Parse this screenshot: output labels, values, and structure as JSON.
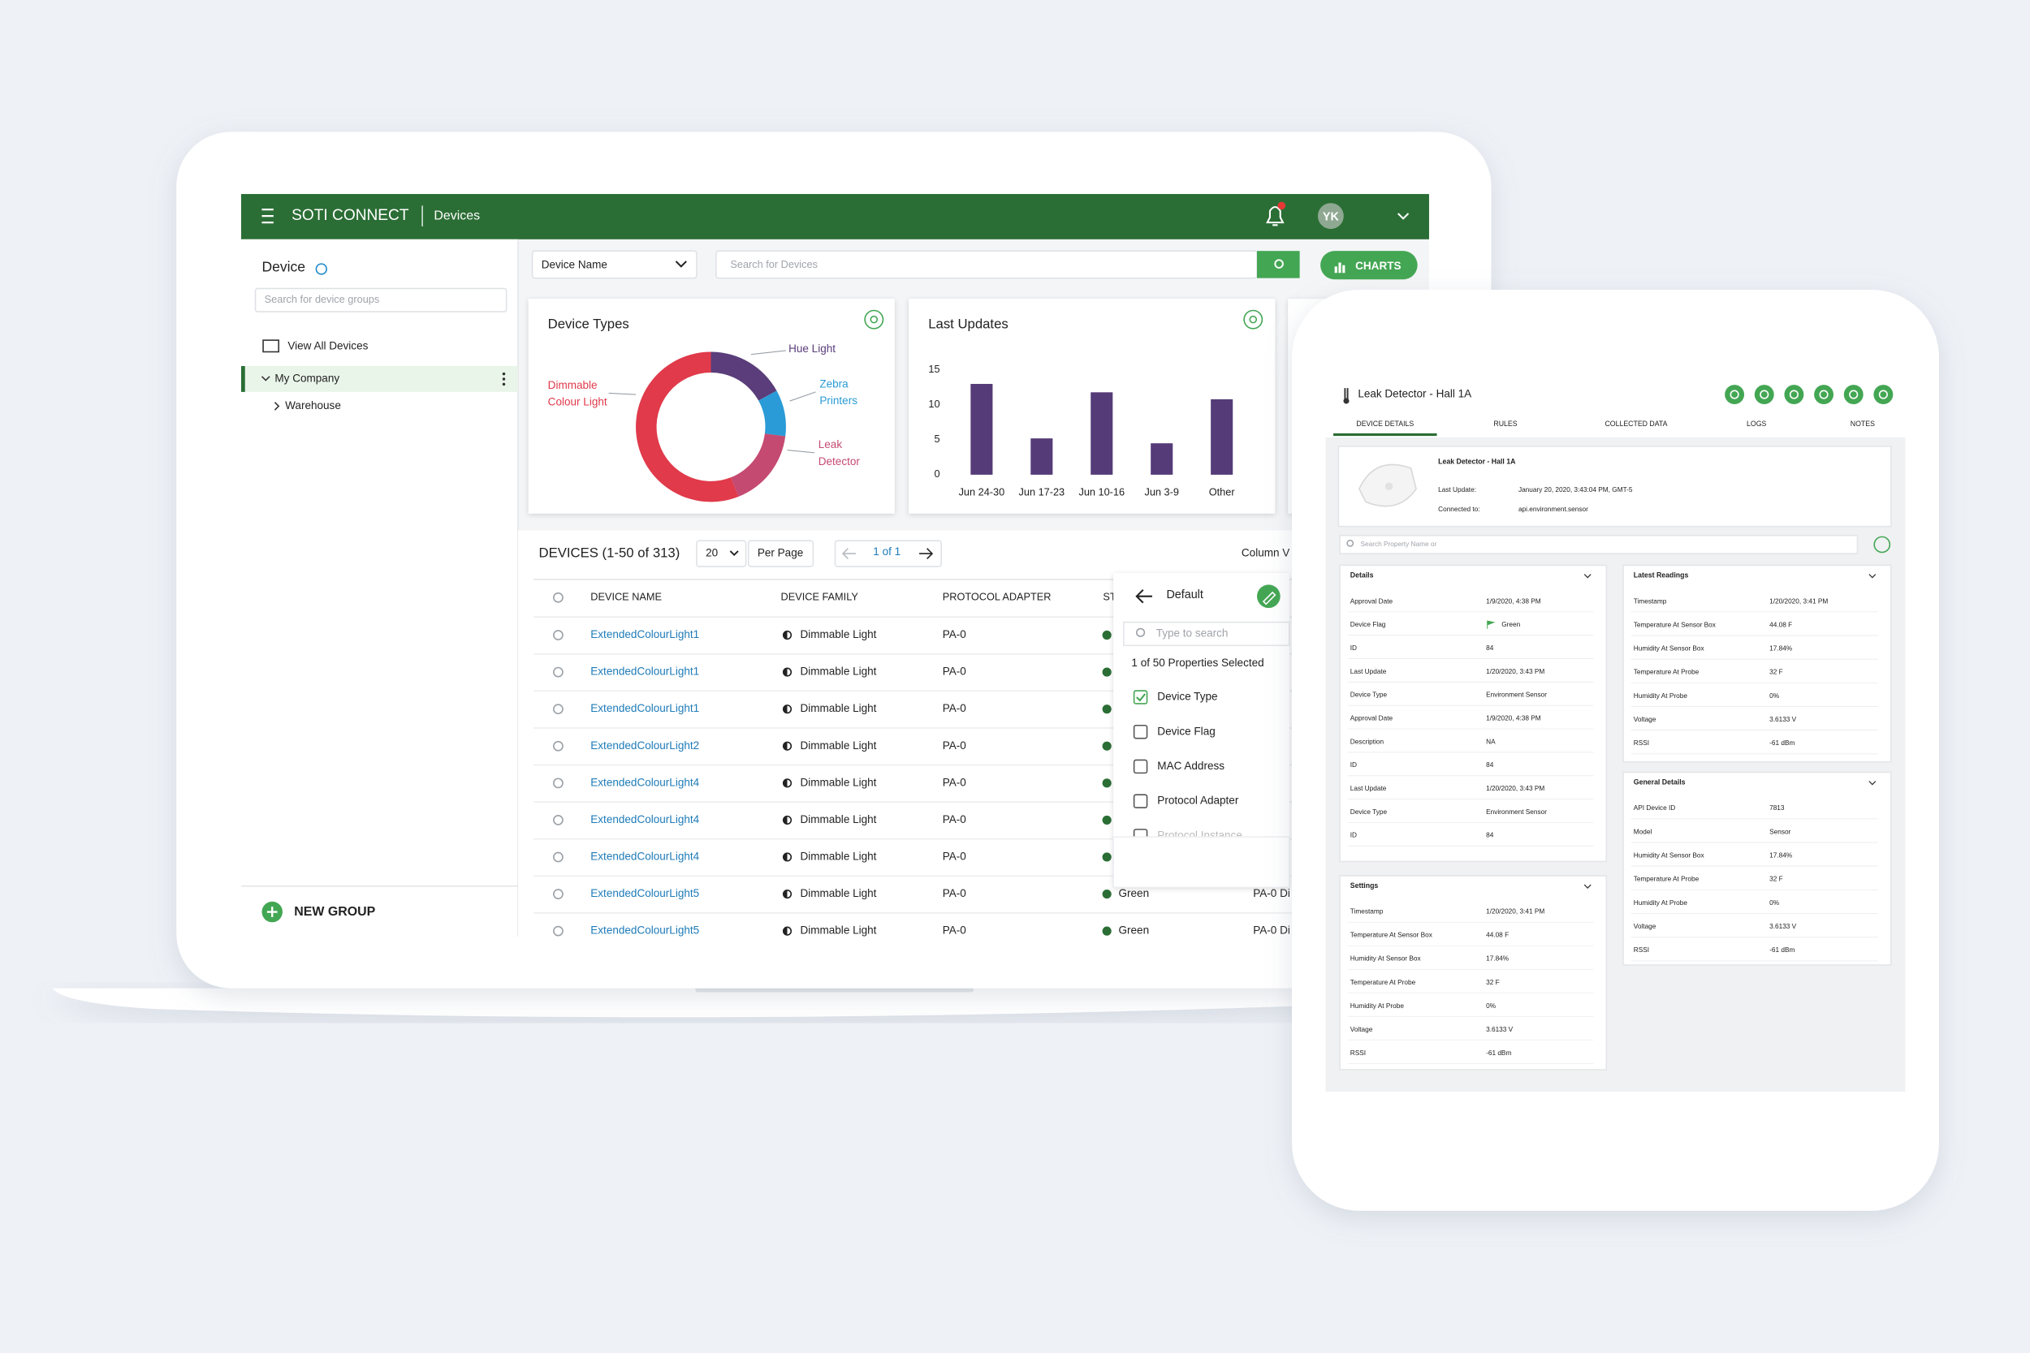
{
  "header": {
    "brand": "SOTI CONNECT",
    "section": "Devices",
    "avatar": "YK"
  },
  "sidebar": {
    "title": "Device",
    "search_placeholder": "Search for device groups",
    "items": [
      "View All Devices",
      "My Company",
      "Warehouse"
    ],
    "new_group": "NEW GROUP"
  },
  "toolbar": {
    "filter": "Device Name",
    "search_placeholder": "Search for Devices",
    "charts_button": "CHARTS"
  },
  "chart_data": [
    {
      "type": "donut",
      "title": "Device Types",
      "categories": [
        "Hue Light",
        "Zebra Printers",
        "Leak Detector",
        "Dimmable Colour Light"
      ],
      "values": [
        17,
        10,
        17,
        56
      ],
      "colors": [
        "#5a3d7a",
        "#2a9bd6",
        "#c54a72",
        "#e03a4b"
      ]
    },
    {
      "type": "bar",
      "title": "Last Updates",
      "categories": [
        "Jun 24-30",
        "Jun 17-23",
        "Jun 10-16",
        "Jun 3-9",
        "Other"
      ],
      "values": [
        13,
        5.2,
        11.8,
        4.5,
        10.8
      ],
      "color": "#553c78",
      "ylim": [
        0,
        15
      ],
      "yticks": [
        0,
        5,
        10,
        15
      ]
    }
  ],
  "table": {
    "title": "DEVICES (1-50 of 313)",
    "page_size": "20",
    "per_page": "Per Page",
    "pager": "1 of 1",
    "column_view": "Column V",
    "columns": [
      "DEVICE NAME",
      "DEVICE FAMILY",
      "PROTOCOL ADAPTER",
      "ST"
    ],
    "rows": [
      {
        "name": "ExtendedColourLight1",
        "family": "Dimmable Light",
        "adapter": "PA-0"
      },
      {
        "name": "ExtendedColourLight1",
        "family": "Dimmable Light",
        "adapter": "PA-0"
      },
      {
        "name": "ExtendedColourLight1",
        "family": "Dimmable Light",
        "adapter": "PA-0"
      },
      {
        "name": "ExtendedColourLight2",
        "family": "Dimmable Light",
        "adapter": "PA-0"
      },
      {
        "name": "ExtendedColourLight4",
        "family": "Dimmable Light",
        "adapter": "PA-0"
      },
      {
        "name": "ExtendedColourLight4",
        "family": "Dimmable Light",
        "adapter": "PA-0"
      },
      {
        "name": "ExtendedColourLight4",
        "family": "Dimmable Light",
        "adapter": "PA-0"
      },
      {
        "name": "ExtendedColourLight5",
        "family": "Dimmable Light",
        "adapter": "PA-0",
        "status": "Green",
        "instance": "PA-0 Di"
      },
      {
        "name": "ExtendedColourLight5",
        "family": "Dimmable Light",
        "adapter": "PA-0",
        "status": "Green",
        "instance": "PA-0 Di"
      }
    ]
  },
  "column_popup": {
    "title": "Default",
    "search_placeholder": "Type to search",
    "summary": "1 of 50 Properties Selected",
    "options": [
      {
        "label": "Device Type",
        "checked": true
      },
      {
        "label": "Device Flag",
        "checked": false
      },
      {
        "label": "MAC Address",
        "checked": false
      },
      {
        "label": "Protocol Adapter",
        "checked": false
      },
      {
        "label": "Protocol Instance",
        "checked": false
      }
    ]
  },
  "tablet": {
    "title": "Leak Detector - Hall 1A",
    "tabs": [
      "DEVICE DETAILS",
      "RULES",
      "COLLECTED DATA",
      "LOGS",
      "NOTES"
    ],
    "device": {
      "name": "Leak Detector - Hall 1A",
      "fields": [
        [
          "Last Update:",
          "January 20, 2020, 3:43:04 PM, GMT-5"
        ],
        [
          "Connected to:",
          "api.environment.sensor"
        ]
      ]
    },
    "search_placeholder": "Search Property Name or",
    "panels": [
      {
        "title": "Details",
        "rows": [
          [
            "Approval Date",
            "1/9/2020, 4:38 PM"
          ],
          [
            "Device Flag",
            "Green"
          ],
          [
            "ID",
            "84"
          ],
          [
            "Last Update",
            "1/20/2020, 3:43 PM"
          ],
          [
            "Device Type",
            "Environment Sensor"
          ],
          [
            "Approval Date",
            "1/9/2020, 4:38 PM"
          ],
          [
            "Description",
            "NA"
          ],
          [
            "ID",
            "84"
          ],
          [
            "Last Update",
            "1/20/2020, 3:43 PM"
          ],
          [
            "Device Type",
            "Environment Sensor"
          ],
          [
            "ID",
            "84"
          ]
        ]
      },
      {
        "title": "Settings",
        "rows": [
          [
            "Timestamp",
            "1/20/2020, 3:41 PM"
          ],
          [
            "Temperature At Sensor Box",
            "44.08 F"
          ],
          [
            "Humidity At Sensor Box",
            "17.84%"
          ],
          [
            "Temperature At Probe",
            "32 F"
          ],
          [
            "Humidity At Probe",
            "0%"
          ],
          [
            "Voltage",
            "3.6133 V"
          ],
          [
            "RSSI",
            "-61 dBm"
          ]
        ]
      },
      {
        "title": "Latest Readings",
        "rows": [
          [
            "Timestamp",
            "1/20/2020, 3:41 PM"
          ],
          [
            "Temperature At Sensor Box",
            "44.08 F"
          ],
          [
            "Humidity At Sensor Box",
            "17.84%"
          ],
          [
            "Temperature At Probe",
            "32 F"
          ],
          [
            "Humidity At Probe",
            "0%"
          ],
          [
            "Voltage",
            "3.6133 V"
          ],
          [
            "RSSI",
            "-61 dBm"
          ]
        ]
      },
      {
        "title": "General Details",
        "rows": [
          [
            "API Device ID",
            "7813"
          ],
          [
            "Model",
            "Sensor"
          ],
          [
            "Humidity At Sensor Box",
            "17.84%"
          ],
          [
            "Temperature At Probe",
            "32 F"
          ],
          [
            "Humidity At Probe",
            "0%"
          ],
          [
            "Voltage",
            "3.6133 V"
          ],
          [
            "RSSI",
            "-61 dBm"
          ]
        ]
      }
    ]
  }
}
